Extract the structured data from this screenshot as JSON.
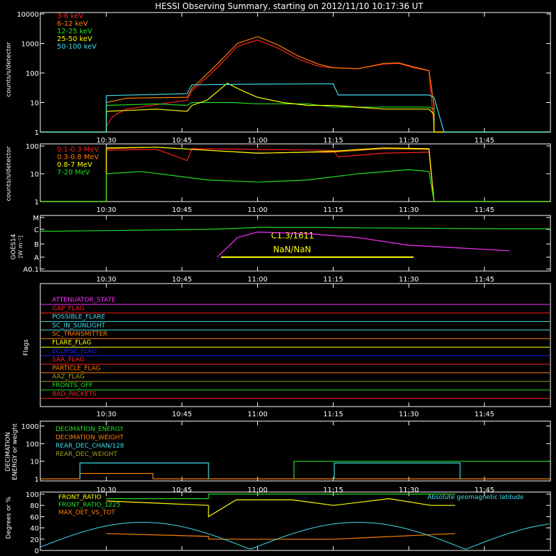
{
  "title": "HESSI Observing Summary, starting on 2012/11/10 10:17:36 UT",
  "time_labels": [
    "10:30",
    "10:45",
    "11:00",
    "11:15",
    "11:30",
    "11:45"
  ],
  "colors": {
    "red": "#ff2020",
    "orange": "#ff8000",
    "yellow": "#ffff00",
    "green": "#20e020",
    "cyan": "#40e0f0",
    "magenta": "#ff30ff",
    "blue": "#2020ff",
    "olive": "#a0a020",
    "white": "#ffffff"
  },
  "chart_data": [
    {
      "type": "line",
      "panel": "counts",
      "ylabel": "counts/s/detector",
      "y_scale": "log",
      "ylim": [
        1,
        10000
      ],
      "y_ticks": [
        "1",
        "10",
        "100",
        "1000",
        "10000"
      ],
      "series": [
        {
          "name": "3-6 keV",
          "color": "#ff2020",
          "x": [
            "10:30",
            "10:31",
            "10:32",
            "10:34",
            "10:46",
            "10:47",
            "10:52",
            "10:56",
            "11:00",
            "11:04",
            "11:08",
            "11:12",
            "11:15",
            "11:20",
            "11:25",
            "11:28",
            "11:31",
            "11:34",
            "11:35"
          ],
          "y": [
            1.5,
            3,
            4,
            6,
            12,
            25,
            150,
            800,
            1300,
            700,
            300,
            170,
            150,
            140,
            200,
            210,
            150,
            120,
            1.5
          ]
        },
        {
          "name": "6-12 keV",
          "color": "#ff8000",
          "x": [
            "10:30",
            "10:34",
            "10:46",
            "10:47",
            "10:52",
            "10:56",
            "11:00",
            "11:04",
            "11:08",
            "11:12",
            "11:15",
            "11:20",
            "11:25",
            "11:28",
            "11:31",
            "11:34",
            "11:35"
          ],
          "y": [
            10,
            14,
            15,
            30,
            200,
            1000,
            1700,
            900,
            380,
            200,
            150,
            140,
            210,
            220,
            160,
            120,
            8
          ]
        },
        {
          "name": "12-25 keV",
          "color": "#20e020",
          "x": [
            "10:30",
            "10:40",
            "10:46",
            "10:47",
            "10:55",
            "11:00",
            "11:10",
            "11:15",
            "11:25",
            "11:34",
            "11:35"
          ],
          "y": [
            8,
            9,
            8,
            10,
            10,
            9,
            9,
            7,
            7,
            7,
            6
          ]
        },
        {
          "name": "25-50 keV",
          "color": "#ffff00",
          "x": [
            "10:30",
            "10:40",
            "10:46",
            "10:47",
            "10:50",
            "10:54",
            "10:57",
            "11:00",
            "11:05",
            "11:10",
            "11:15",
            "11:25",
            "11:34",
            "11:35"
          ],
          "y": [
            5,
            6,
            5,
            8,
            12,
            45,
            25,
            15,
            10,
            8,
            8,
            6,
            6,
            4
          ]
        },
        {
          "name": "50-100 keV",
          "color": "#40e0f0",
          "x": [
            "10:30",
            "10:46",
            "10:47",
            "11:00",
            "11:15",
            "11:16",
            "11:34",
            "11:35",
            "11:37"
          ],
          "y": [
            17,
            20,
            40,
            42,
            43,
            18,
            18,
            15,
            1
          ]
        }
      ]
    },
    {
      "type": "line",
      "panel": "counts_high",
      "ylabel": "counts/s/detector",
      "y_scale": "log",
      "ylim": [
        1,
        100
      ],
      "y_ticks": [
        "1",
        "10",
        "100"
      ],
      "series": [
        {
          "name": "0.1-0.3 MeV",
          "color": "#ff2020",
          "x": [
            "10:30",
            "10:40",
            "10:46",
            "10:47",
            "11:00",
            "11:15",
            "11:16",
            "11:25",
            "11:34",
            "11:35"
          ],
          "y": [
            70,
            75,
            30,
            80,
            75,
            70,
            40,
            55,
            60,
            1
          ]
        },
        {
          "name": "0.3-0.8 MeV",
          "color": "#ff8000",
          "x": [
            "10:30",
            "10:40",
            "10:50",
            "11:00",
            "11:10",
            "11:15",
            "11:25",
            "11:34",
            "11:35"
          ],
          "y": [
            80,
            90,
            70,
            55,
            60,
            60,
            80,
            75,
            1
          ]
        },
        {
          "name": "0.8-7 MeV",
          "color": "#ffff00",
          "x": [
            "10:30",
            "10:40",
            "10:50",
            "11:00",
            "11:10",
            "11:15",
            "11:25",
            "11:34",
            "11:35"
          ],
          "y": [
            85,
            90,
            70,
            55,
            60,
            65,
            85,
            80,
            1
          ]
        },
        {
          "name": "7-20 MeV",
          "color": "#20e020",
          "x": [
            "10:30",
            "10:37",
            "10:50",
            "11:00",
            "11:10",
            "11:20",
            "11:30",
            "11:34",
            "11:35"
          ],
          "y": [
            10,
            12,
            6,
            5,
            6,
            10,
            14,
            12,
            1
          ]
        }
      ]
    },
    {
      "type": "line",
      "panel": "goes",
      "ylabel": "GOES14 [W m^-2]",
      "y_ticks": [
        "A0.1",
        "A",
        "B",
        "C",
        "M"
      ],
      "annotations": [
        "C1.3/1611",
        "NaN/NaN"
      ],
      "series": [
        {
          "name": "long",
          "color": "#20e020",
          "x": [
            "10:17",
            "10:50",
            "10:56",
            "11:00",
            "11:10",
            "11:20",
            "11:35",
            "11:50"
          ],
          "y": [
            "B9",
            "C1",
            "C1.2",
            "C1.4",
            "C1.4",
            "C1.3",
            "C1.2",
            "C1.1"
          ]
        },
        {
          "name": "short",
          "color": "#ff30ff",
          "x": [
            "10:52",
            "10:56",
            "11:00",
            "11:10",
            "11:20",
            "11:30",
            "11:40",
            "11:50"
          ],
          "y": [
            "A1",
            "B3",
            "B8",
            "B6",
            "B3",
            "A8",
            "A5",
            "A3"
          ]
        }
      ]
    },
    {
      "type": "line",
      "panel": "flags",
      "ylabel": "Flags",
      "series": [
        {
          "name": "ATTENUATOR_STATE",
          "color": "#ff30ff"
        },
        {
          "name": "GAP_FLAG",
          "color": "#ff2020"
        },
        {
          "name": "POSSIBLE_FLARE",
          "color": "#40e0f0"
        },
        {
          "name": "SC_IN_SUNLIGHT",
          "color": "#40e0f0"
        },
        {
          "name": "SC_TRANSMITTER",
          "color": "#ff8000"
        },
        {
          "name": "FLARE_FLAG",
          "color": "#ffff00"
        },
        {
          "name": "ECLIPSE_FLAG",
          "color": "#2020ff"
        },
        {
          "name": "SAA_FLAG",
          "color": "#ff2020"
        },
        {
          "name": "PARTICLE_FLAG",
          "color": "#ff8000"
        },
        {
          "name": "AAZ_FLAG",
          "color": "#a0a020"
        },
        {
          "name": "FRONTS_OFF",
          "color": "#20e020"
        },
        {
          "name": "BAD_PACKETS",
          "color": "#ff2020"
        }
      ]
    },
    {
      "type": "line",
      "panel": "decimation",
      "ylabel": "DECIMATION ENERGY or weight",
      "y_scale": "log",
      "ylim": [
        1,
        1000
      ],
      "y_ticks": [
        "1",
        "10",
        "100",
        "1000"
      ],
      "series": [
        {
          "name": "DECIMATION_ENERGY",
          "color": "#20e020"
        },
        {
          "name": "DECIMATION_WEIGHT",
          "color": "#ff8000"
        },
        {
          "name": "REAR_DEC_CHAN/128",
          "color": "#40e0f0"
        },
        {
          "name": "REAR_DEC_WEIGHT",
          "color": "#a0a020"
        }
      ]
    },
    {
      "type": "line",
      "panel": "ratios",
      "ylabel": "Degrees or %",
      "ylim": [
        0,
        100
      ],
      "y_ticks": [
        "0",
        "20",
        "40",
        "60",
        "80",
        "100"
      ],
      "series": [
        {
          "name": "FRONT_RATIO",
          "color": "#ffff00"
        },
        {
          "name": "FRONT_RATIO_1225",
          "color": "#20e020"
        },
        {
          "name": "MAX_DET_VS_TOT",
          "color": "#ff8000"
        },
        {
          "name": "Absolute geomagnetic latitude",
          "color": "#40e0f0"
        }
      ]
    }
  ]
}
